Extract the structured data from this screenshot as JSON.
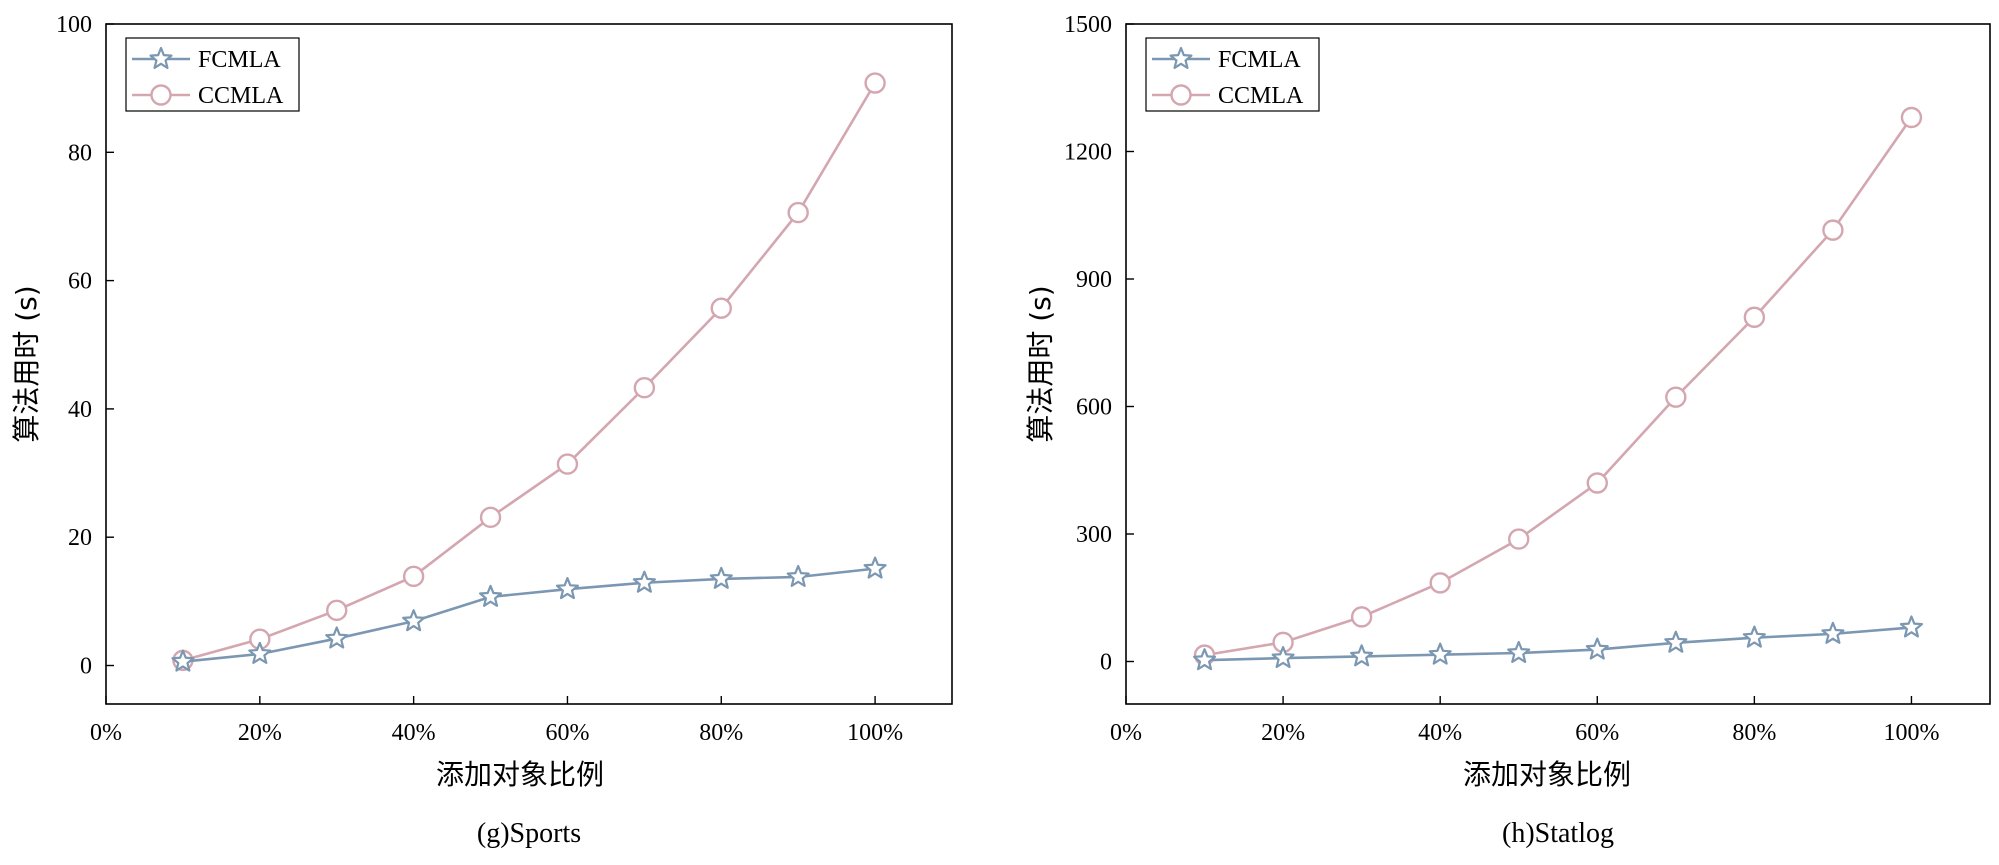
{
  "colors": {
    "fcmla": "#7b97b1",
    "ccmla": "#d4a7b0",
    "axis": "#000000"
  },
  "chart_data": [
    {
      "type": "line",
      "caption": "(g)Sports",
      "xlabel": "添加对象比例",
      "ylabel": "算法用时 (s)",
      "xlim": [
        0,
        110
      ],
      "ylim": [
        -6,
        100
      ],
      "xticks": [
        0,
        20,
        40,
        60,
        80,
        100
      ],
      "xtick_labels": [
        "0%",
        "20%",
        "40%",
        "60%",
        "80%",
        "100%"
      ],
      "yticks": [
        0,
        20,
        40,
        60,
        80,
        100
      ],
      "ytick_labels": [
        "0",
        "20",
        "40",
        "60",
        "80",
        "100"
      ],
      "legend_position": "top-left",
      "x": [
        10,
        20,
        30,
        40,
        50,
        60,
        70,
        80,
        90,
        100
      ],
      "series": [
        {
          "name": "FCMLA",
          "marker": "star",
          "values": [
            0.6,
            1.8,
            4.2,
            6.9,
            10.7,
            11.9,
            12.9,
            13.5,
            13.8,
            15.1
          ]
        },
        {
          "name": "CCMLA",
          "marker": "circle",
          "values": [
            0.8,
            4.1,
            8.6,
            13.9,
            23.1,
            31.4,
            43.3,
            55.7,
            70.6,
            90.8
          ]
        }
      ]
    },
    {
      "type": "line",
      "caption": "(h)Statlog",
      "xlabel": "添加对象比例",
      "ylabel": "算法用时 (s)",
      "xlim": [
        0,
        110
      ],
      "ylim": [
        -100,
        1500
      ],
      "xticks": [
        0,
        20,
        40,
        60,
        80,
        100
      ],
      "xtick_labels": [
        "0%",
        "20%",
        "40%",
        "60%",
        "80%",
        "100%"
      ],
      "yticks": [
        0,
        300,
        600,
        900,
        1200,
        1500
      ],
      "ytick_labels": [
        "0",
        "300",
        "600",
        "900",
        "1200",
        "1500"
      ],
      "legend_position": "top-left",
      "x": [
        10,
        20,
        30,
        40,
        50,
        60,
        70,
        80,
        90,
        100
      ],
      "series": [
        {
          "name": "FCMLA",
          "marker": "star",
          "values": [
            3,
            8,
            12,
            16,
            20,
            28,
            44,
            56,
            65,
            80
          ]
        },
        {
          "name": "CCMLA",
          "marker": "circle",
          "values": [
            15,
            45,
            105,
            185,
            288,
            420,
            622,
            810,
            1015,
            1280
          ]
        }
      ]
    }
  ]
}
